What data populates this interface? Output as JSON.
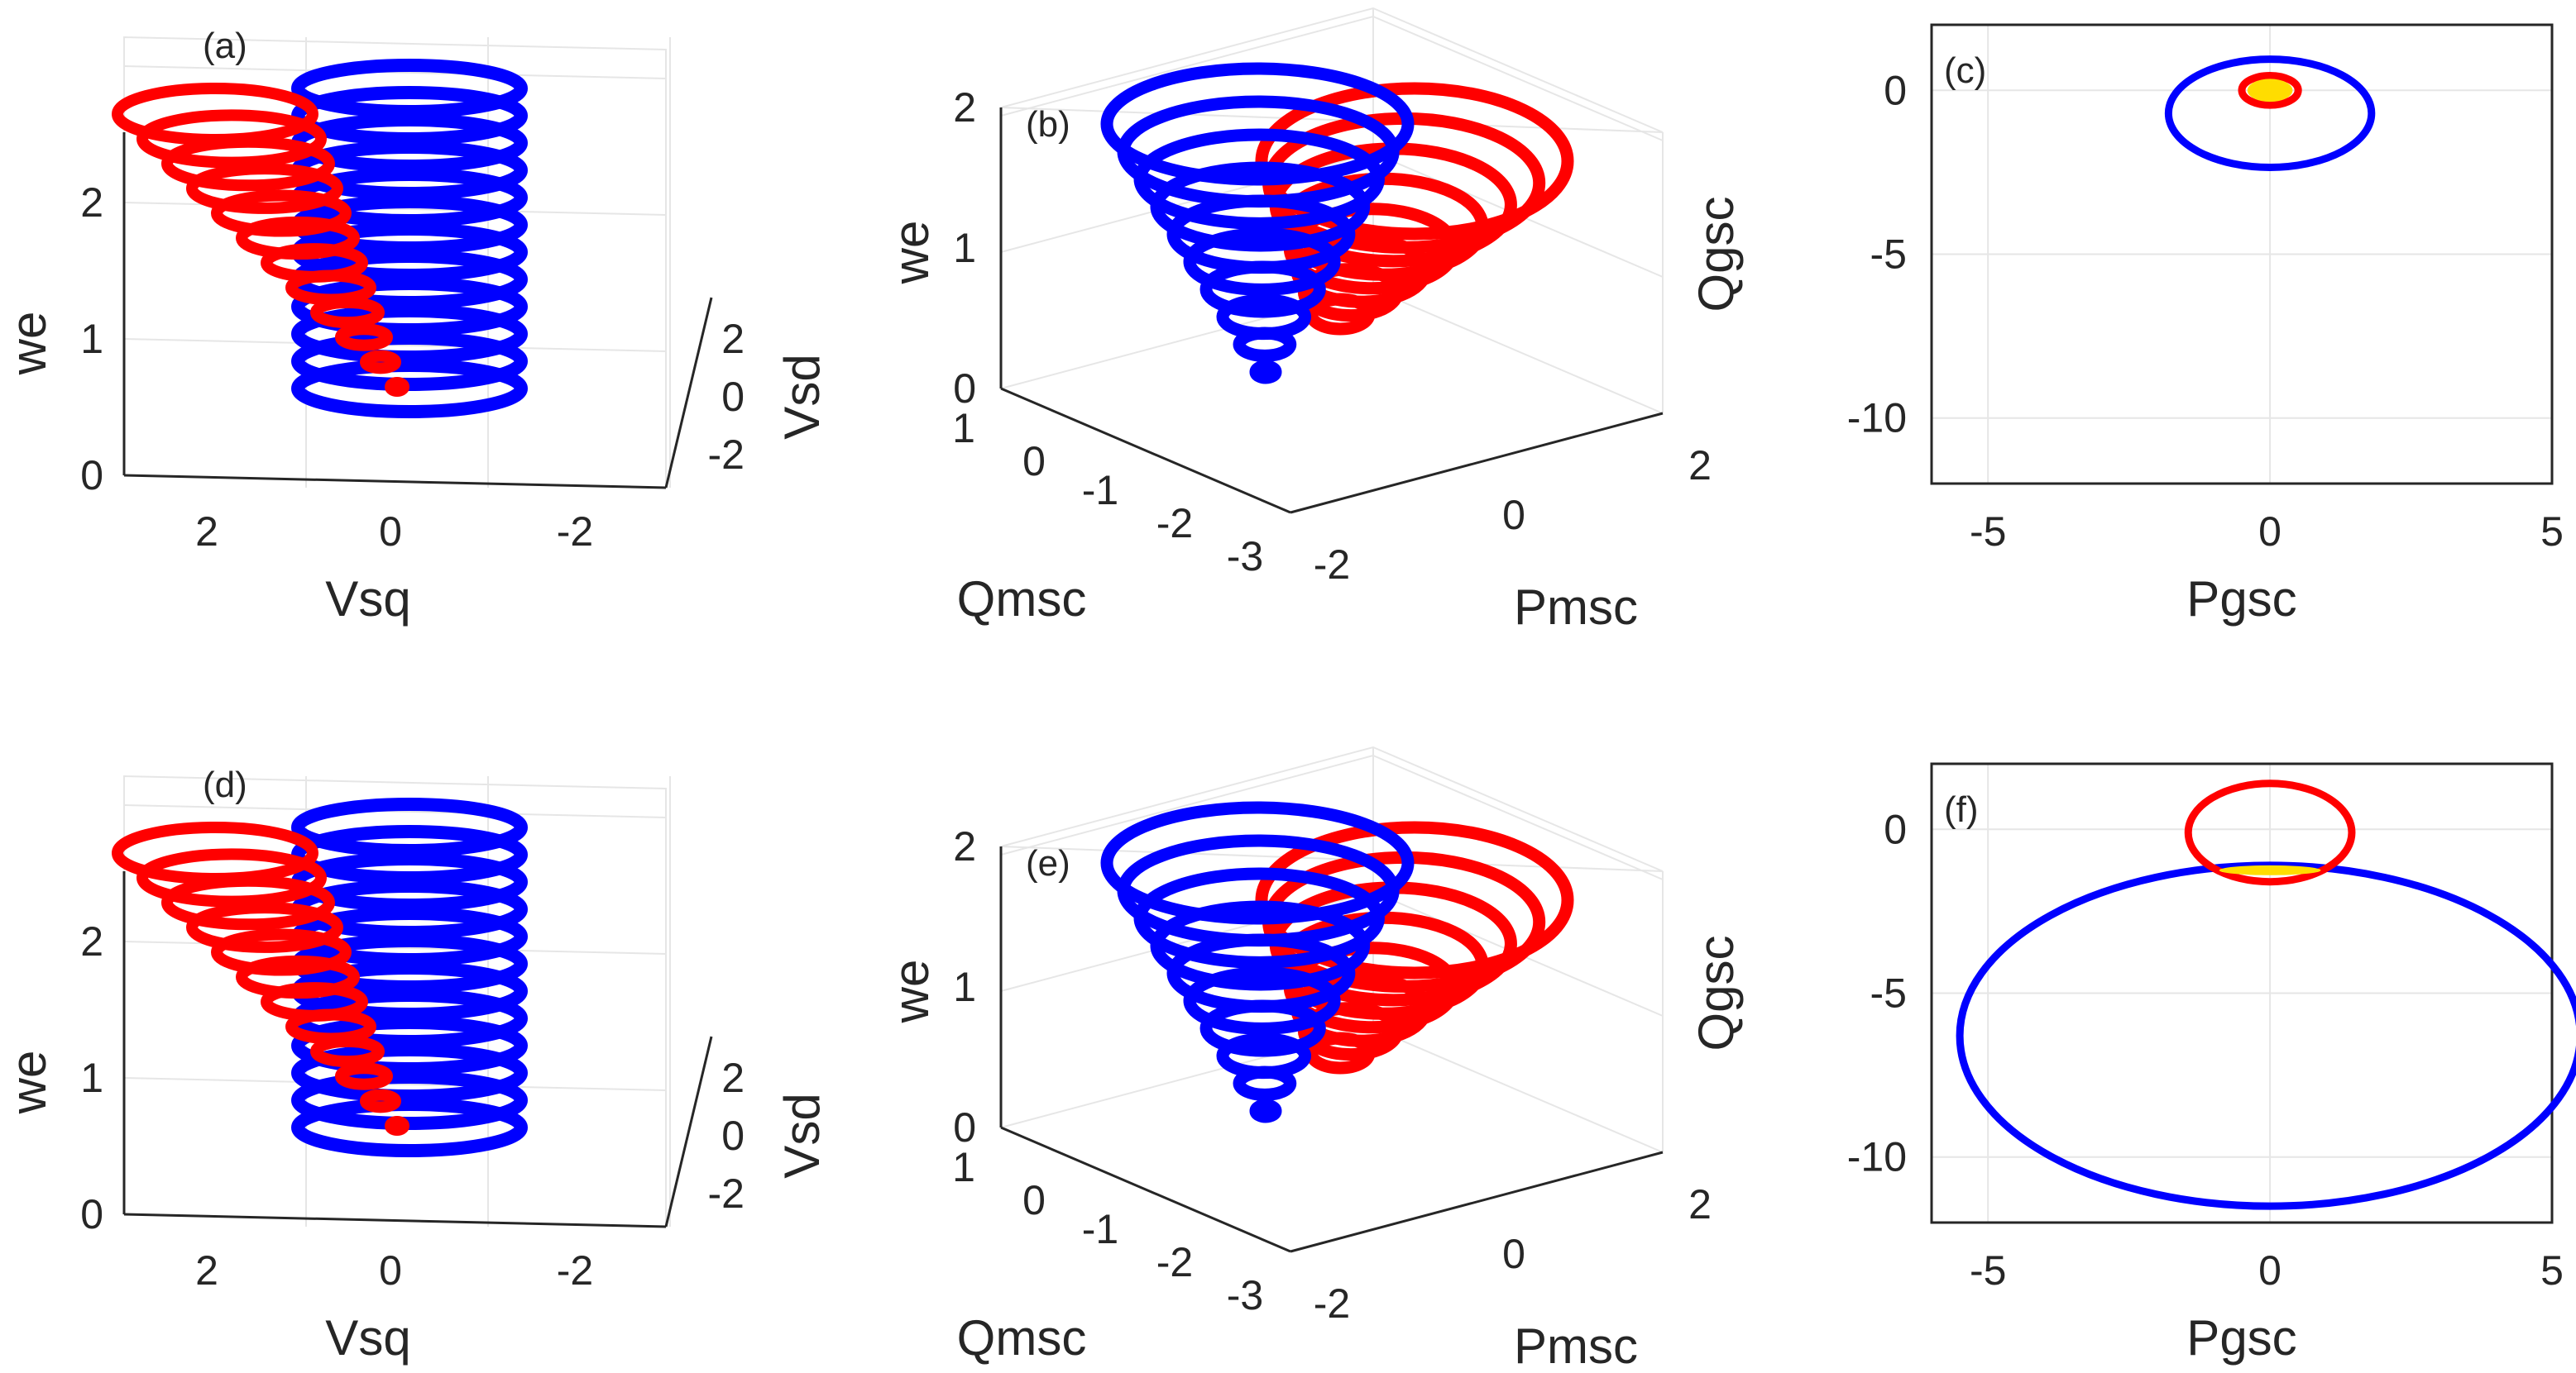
{
  "figure": {
    "colors": {
      "blue": "#0000ff",
      "red": "#ff0000",
      "yellow": "#ffdd00",
      "grid": "#e6e6e6",
      "axis": "#262626"
    }
  },
  "chart_data": [
    {
      "panel": "(a)",
      "type": "line3d",
      "xlabel": "Vsq",
      "ylabel": "Vsd",
      "zlabel": "we",
      "x_ticks": [
        "2",
        "0",
        "-2"
      ],
      "y_ticks": [
        "2",
        "0",
        "-2"
      ],
      "z_ticks": [
        "2",
        "1",
        "0"
      ],
      "series": [
        {
          "name": "blue",
          "color": "#0000ff",
          "shape": "cylinder spiral",
          "turns": 12,
          "z_range": [
            0.5,
            2.6
          ]
        },
        {
          "name": "red",
          "color": "#ff0000",
          "shape": "cone spiral",
          "turns": 12,
          "z_range": [
            0.5,
            2.6
          ]
        }
      ]
    },
    {
      "panel": "(b)",
      "type": "line3d",
      "xlabel": "Pmsc",
      "ylabel": "Qmsc",
      "zlabel": "we",
      "x_ticks": [
        "2",
        "0",
        "-2"
      ],
      "y_ticks": [
        "1",
        "0",
        "-1",
        "-2",
        "-3"
      ],
      "z_ticks": [
        "2",
        "1",
        "0"
      ],
      "series": [
        {
          "name": "blue",
          "color": "#0000ff",
          "shape": "cone spiral",
          "turns": 10,
          "z_range": [
            0.1,
            2.0
          ]
        },
        {
          "name": "red",
          "color": "#ff0000",
          "shape": "cone spiral",
          "turns": 8,
          "z_range": [
            0.8,
            1.9
          ]
        }
      ]
    },
    {
      "panel": "(c)",
      "type": "line",
      "xlabel": "Pgsc",
      "ylabel": "Qgsc",
      "xlim": [
        -6,
        5
      ],
      "ylim": [
        -12,
        2
      ],
      "x_ticks": [
        "-5",
        "0",
        "5"
      ],
      "y_ticks": [
        "0",
        "-5",
        "-10"
      ],
      "series": [
        {
          "name": "blue",
          "color": "#0000ff",
          "center": [
            0,
            -0.7
          ],
          "radius": [
            1.8,
            1.65
          ]
        },
        {
          "name": "red",
          "color": "#ff0000",
          "center": [
            0,
            0
          ],
          "radius": [
            0.5,
            0.45
          ]
        },
        {
          "name": "yellow",
          "color": "#ffdd00",
          "center": [
            0,
            0
          ],
          "radius": [
            0.4,
            0.35
          ]
        }
      ]
    },
    {
      "panel": "(d)",
      "type": "line3d",
      "xlabel": "Vsq",
      "ylabel": "Vsd",
      "zlabel": "we",
      "x_ticks": [
        "2",
        "0",
        "-2"
      ],
      "y_ticks": [
        "2",
        "0",
        "-2"
      ],
      "z_ticks": [
        "2",
        "1",
        "0"
      ],
      "series": [
        {
          "name": "blue",
          "color": "#0000ff",
          "shape": "cylinder spiral",
          "turns": 12,
          "z_range": [
            0.5,
            2.6
          ]
        },
        {
          "name": "red",
          "color": "#ff0000",
          "shape": "cone spiral",
          "turns": 12,
          "z_range": [
            0.5,
            2.6
          ]
        }
      ]
    },
    {
      "panel": "(e)",
      "type": "line3d",
      "xlabel": "Pmsc",
      "ylabel": "Qmsc",
      "zlabel": "we",
      "x_ticks": [
        "2",
        "0",
        "-2"
      ],
      "y_ticks": [
        "1",
        "0",
        "-1",
        "-2",
        "-3"
      ],
      "z_ticks": [
        "2",
        "1",
        "0"
      ],
      "series": [
        {
          "name": "blue",
          "color": "#0000ff",
          "shape": "cone spiral",
          "turns": 10,
          "z_range": [
            0.1,
            2.0
          ]
        },
        {
          "name": "red",
          "color": "#ff0000",
          "shape": "cone spiral",
          "turns": 8,
          "z_range": [
            0.8,
            1.9
          ]
        }
      ]
    },
    {
      "panel": "(f)",
      "type": "line",
      "xlabel": "Pgsc",
      "ylabel": "Qgsc",
      "xlim": [
        -6,
        5
      ],
      "ylim": [
        -12,
        2
      ],
      "x_ticks": [
        "-5",
        "0",
        "5"
      ],
      "y_ticks": [
        "0",
        "-5",
        "-10"
      ],
      "series": [
        {
          "name": "blue",
          "color": "#0000ff",
          "center": [
            0,
            -6.3
          ],
          "radius": [
            5.5,
            5.2
          ]
        },
        {
          "name": "red",
          "color": "#ff0000",
          "center": [
            0,
            -0.1
          ],
          "radius": [
            1.45,
            1.5
          ]
        },
        {
          "name": "yellow",
          "color": "#ffdd00",
          "center": [
            0,
            -1.25
          ],
          "radius": [
            0.9,
            0.15
          ]
        }
      ]
    }
  ]
}
